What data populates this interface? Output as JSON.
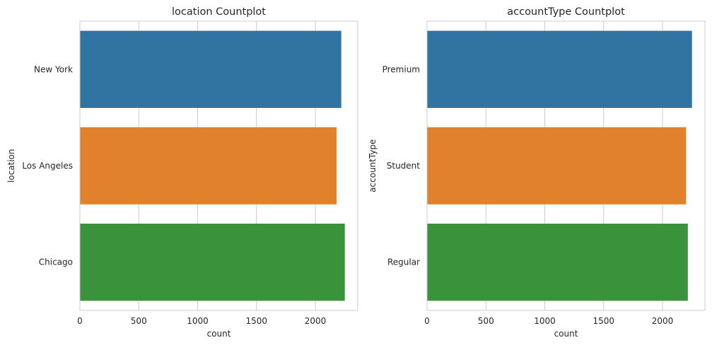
{
  "chart_data": [
    {
      "type": "bar",
      "orientation": "horizontal",
      "title": "location Countplot",
      "xlabel": "count",
      "ylabel": "location",
      "categories": [
        "New York",
        "Los Angeles",
        "Chicago"
      ],
      "values": [
        2220,
        2180,
        2250
      ],
      "colors": [
        "#3274a1",
        "#e1812c",
        "#3a923a"
      ],
      "xlim": [
        0,
        2360
      ],
      "xticks": [
        "0",
        "500",
        "1000",
        "1500",
        "2000"
      ],
      "grid": true
    },
    {
      "type": "bar",
      "orientation": "horizontal",
      "title": "accountType Countplot",
      "xlabel": "count",
      "ylabel": "accountType",
      "categories": [
        "Premium",
        "Student",
        "Regular"
      ],
      "values": [
        2250,
        2200,
        2215
      ],
      "colors": [
        "#3274a1",
        "#e1812c",
        "#3a923a"
      ],
      "xlim": [
        0,
        2360
      ],
      "xticks": [
        "0",
        "500",
        "1000",
        "1500",
        "2000"
      ],
      "grid": true
    }
  ]
}
